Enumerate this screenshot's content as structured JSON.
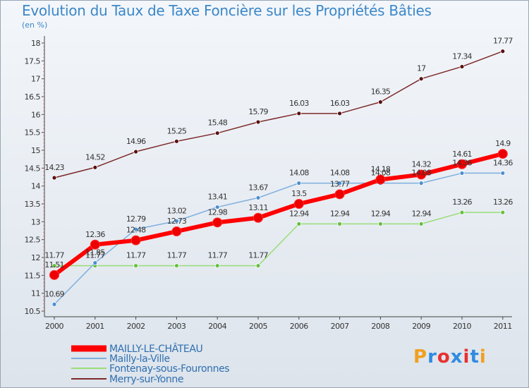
{
  "chart_data": {
    "type": "line",
    "title": "Evolution du Taux de Taxe Foncière sur les Propriétés Bâties",
    "subtitle": "(en %)",
    "x": [
      "2000",
      "2001",
      "2002",
      "2003",
      "2004",
      "2005",
      "2006",
      "2007",
      "2008",
      "2009",
      "2010",
      "2011"
    ],
    "ylim": [
      10.5,
      18
    ],
    "yticks": [
      "10.5",
      "11",
      "11.5",
      "12",
      "12.5",
      "13",
      "13.5",
      "14",
      "14.5",
      "15",
      "15.5",
      "16",
      "16.5",
      "17",
      "17.5",
      "18"
    ],
    "grid": false,
    "legend_position": "bottom-left",
    "series": [
      {
        "name": "Merry-sur-Yonne",
        "color": "#7d2a2a",
        "marker": "#5a1010",
        "values": [
          14.23,
          14.52,
          14.96,
          15.25,
          15.48,
          15.79,
          16.03,
          16.03,
          16.35,
          17,
          17.34,
          17.77
        ],
        "labels": [
          "14.23",
          "14.52",
          "14.96",
          "15.25",
          "15.48",
          "15.79",
          "16.03",
          "16.03",
          "16.35",
          "17",
          "17.34",
          "17.77"
        ]
      },
      {
        "name": "Fontenay-sous-Fouronnes",
        "color": "#99dd77",
        "marker": "#66c040",
        "values": [
          11.77,
          11.77,
          11.77,
          11.77,
          11.77,
          11.77,
          12.94,
          12.94,
          12.94,
          12.94,
          13.26,
          13.26
        ],
        "labels": [
          "11.77",
          "11.77",
          "11.77",
          "11.77",
          "11.77",
          "11.77",
          "12.94",
          "12.94",
          "12.94",
          "12.94",
          "13.26",
          "13.26"
        ]
      },
      {
        "name": "Mailly-la-Ville",
        "color": "#7eaede",
        "marker": "#4a8fd0",
        "values": [
          10.69,
          11.85,
          12.79,
          13.02,
          13.41,
          13.67,
          14.08,
          14.08,
          14.08,
          14.08,
          14.36,
          14.36
        ],
        "labels": [
          "10.69",
          "11.85",
          "12.79",
          "13.02",
          "13.41",
          "13.67",
          "14.08",
          "14.08",
          "14.08",
          "14.08",
          "14.36",
          "14.36"
        ]
      },
      {
        "name": "MAILLY-LE-CHÂTEAU",
        "color": "#ff0000",
        "marker": "#ee0000",
        "values": [
          11.51,
          12.36,
          12.48,
          12.73,
          12.98,
          13.11,
          13.5,
          13.77,
          14.18,
          14.32,
          14.61,
          14.9
        ],
        "labels": [
          "11.51",
          "12.36",
          "12.48",
          "12.73",
          "12.98",
          "13.11",
          "13.5",
          "13.77",
          "14.18",
          "14.32",
          "14.61",
          "14.9"
        ]
      }
    ],
    "legend": [
      "MAILLY-LE-CHÂTEAU",
      "Mailly-la-Ville",
      "Fontenay-sous-Fouronnes",
      "Merry-sur-Yonne"
    ]
  },
  "logo": {
    "text": "Proxiti",
    "colors": [
      "#f0a020",
      "#2f8be0",
      "#e83030",
      "#2f8be0",
      "#e83030",
      "#2f8be0",
      "#f0a020"
    ]
  }
}
